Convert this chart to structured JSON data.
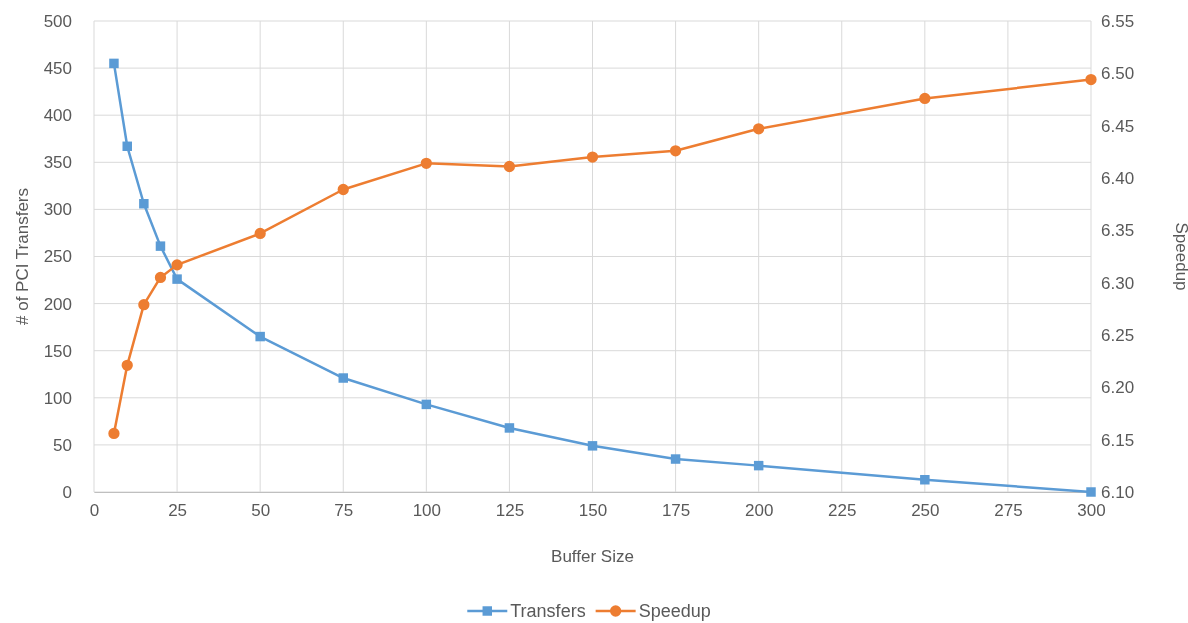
{
  "chart_data": {
    "type": "line",
    "xlabel": "Buffer Size",
    "ylabel": "# of PCI Transfers",
    "y2label": "Speedup",
    "x": [
      6,
      10,
      15,
      20,
      25,
      50,
      75,
      100,
      125,
      150,
      175,
      200,
      250,
      300
    ],
    "series": [
      {
        "name": "Transfers",
        "color": "#5b9bd5",
        "marker": "square",
        "values": [
          455,
          367,
          306,
          261,
          226,
          165,
          121,
          93,
          68,
          49,
          35,
          28,
          13,
          0
        ]
      },
      {
        "name": "Speedup",
        "color": "#ed7d31",
        "marker": "circle",
        "axis": "y2",
        "values": [
          6.156,
          6.221,
          6.279,
          6.305,
          6.317,
          6.347,
          6.389,
          6.414,
          6.411,
          6.42,
          6.426,
          6.447,
          6.476,
          6.494
        ]
      }
    ],
    "xlim": [
      0,
      300
    ],
    "xticks": [
      0,
      25,
      50,
      75,
      100,
      125,
      150,
      175,
      200,
      225,
      250,
      275,
      300
    ],
    "ylim": [
      0,
      500
    ],
    "yticks": [
      0,
      50,
      100,
      150,
      200,
      250,
      300,
      350,
      400,
      450,
      500
    ],
    "y2lim": [
      6.1,
      6.55
    ],
    "y2ticks": [
      {
        "value": 6.1,
        "label": "6.10"
      },
      {
        "value": 6.15,
        "label": "6.15"
      },
      {
        "value": 6.2,
        "label": "6.20"
      },
      {
        "value": 6.25,
        "label": "6.25"
      },
      {
        "value": 6.3,
        "label": "6.30"
      },
      {
        "value": 6.35,
        "label": "6.35"
      },
      {
        "value": 6.4,
        "label": "6.40"
      },
      {
        "value": 6.45,
        "label": "6.45"
      },
      {
        "value": 6.5,
        "label": "6.50"
      },
      {
        "value": 6.55,
        "label": "6.55"
      }
    ],
    "grid": true,
    "legend": "bottom",
    "line_style": "solid"
  }
}
